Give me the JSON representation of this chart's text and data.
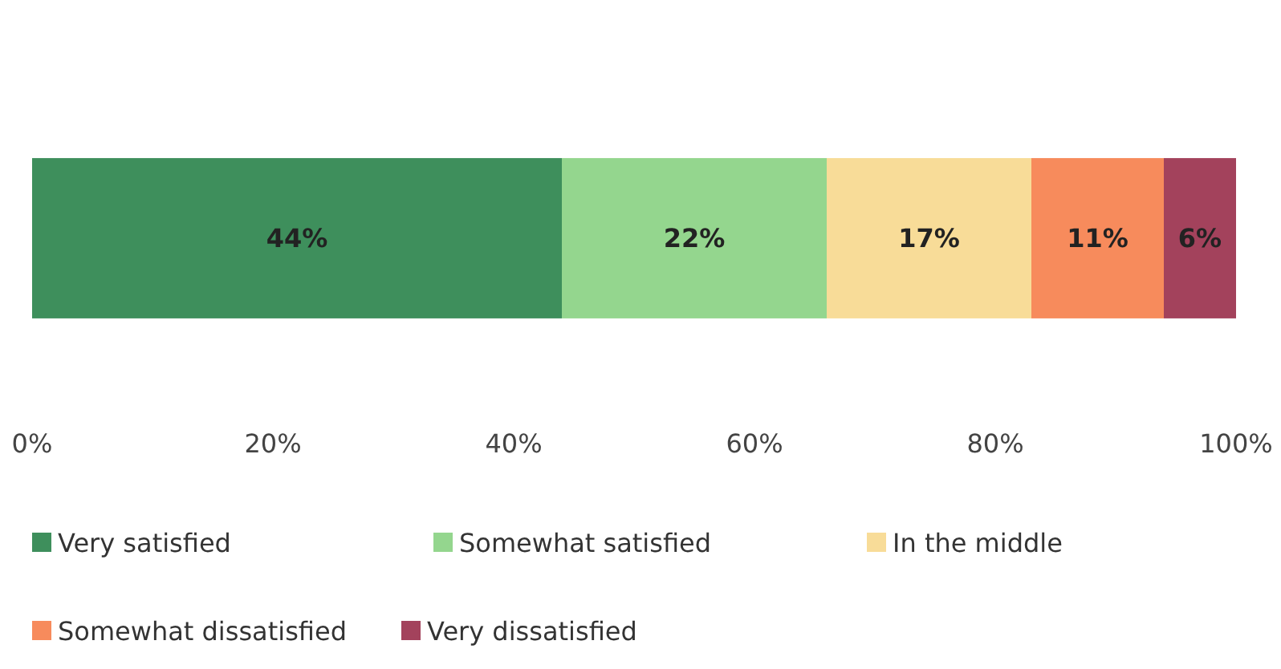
{
  "chart_data": {
    "type": "bar",
    "orientation": "horizontal",
    "stacked": true,
    "categories": [
      null
    ],
    "series": [
      {
        "name": "Very satisfied",
        "color": "#3e8f5c",
        "values": [
          44
        ],
        "value_labels": [
          "44%"
        ]
      },
      {
        "name": "Somewhat satisfied",
        "color": "#94d68e",
        "values": [
          22
        ],
        "value_labels": [
          "22%"
        ]
      },
      {
        "name": "In the middle",
        "color": "#f8dc98",
        "values": [
          17
        ],
        "value_labels": [
          "17%"
        ]
      },
      {
        "name": "Somewhat dissatisfied",
        "color": "#f78b5c",
        "values": [
          11
        ],
        "value_labels": [
          "11%"
        ]
      },
      {
        "name": "Very dissatisfied",
        "color": "#a3425c",
        "values": [
          6
        ],
        "value_labels": [
          "6%"
        ]
      }
    ],
    "xlim": [
      0,
      100
    ],
    "xticks": [
      {
        "value": 0,
        "label": "0%"
      },
      {
        "value": 20,
        "label": "20%"
      },
      {
        "value": 40,
        "label": "40%"
      },
      {
        "value": 60,
        "label": "60%"
      },
      {
        "value": 80,
        "label": "80%"
      },
      {
        "value": 100,
        "label": "100%"
      }
    ],
    "legend": "bottom",
    "grid": false
  }
}
